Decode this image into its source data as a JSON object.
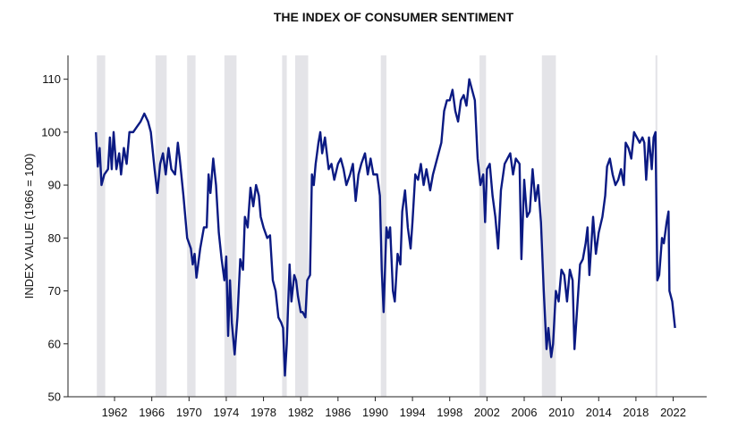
{
  "chart_data": {
    "type": "line",
    "title": "THE INDEX OF CONSUMER SENTIMENT",
    "y_label": "INDEX VALUE (1966 = 100)",
    "color": "#0b1a83",
    "recession_color": "#e4e4e8",
    "xlim": [
      1957,
      2025.6
    ],
    "ylim": [
      50,
      114.5
    ],
    "xticks": [
      1962,
      1966,
      1970,
      1974,
      1978,
      1982,
      1986,
      1990,
      1994,
      1998,
      2002,
      2006,
      2010,
      2014,
      2018,
      2022
    ],
    "yticks": [
      50,
      60,
      70,
      80,
      90,
      100,
      110
    ],
    "recessions": [
      [
        1960.1,
        1961.0
      ],
      [
        1966.4,
        1967.6
      ],
      [
        1969.8,
        1970.7
      ],
      [
        1973.8,
        1975.1
      ],
      [
        1980.0,
        1980.5
      ],
      [
        1981.4,
        1982.8
      ],
      [
        1990.6,
        1991.2
      ],
      [
        2001.2,
        2001.9
      ],
      [
        2007.9,
        2009.4
      ],
      [
        2020.1,
        2020.3
      ]
    ],
    "x": [
      1960.0,
      1960.2,
      1960.4,
      1960.6,
      1960.9,
      1961.3,
      1961.5,
      1961.7,
      1961.9,
      1962.2,
      1962.5,
      1962.7,
      1963.0,
      1963.3,
      1963.6,
      1964.0,
      1964.4,
      1964.8,
      1965.2,
      1965.6,
      1965.9,
      1966.3,
      1966.6,
      1966.9,
      1967.2,
      1967.5,
      1967.8,
      1968.1,
      1968.5,
      1968.8,
      1969.0,
      1969.4,
      1969.8,
      1970.2,
      1970.4,
      1970.6,
      1970.8,
      1971.2,
      1971.6,
      1971.9,
      1972.1,
      1972.3,
      1972.6,
      1972.9,
      1973.2,
      1973.5,
      1973.8,
      1974.0,
      1974.2,
      1974.4,
      1974.6,
      1974.9,
      1975.2,
      1975.5,
      1975.8,
      1976.0,
      1976.3,
      1976.6,
      1976.9,
      1977.2,
      1977.5,
      1977.7,
      1978.0,
      1978.4,
      1978.7,
      1979.0,
      1979.3,
      1979.6,
      1979.9,
      1980.1,
      1980.3,
      1980.5,
      1980.8,
      1981.0,
      1981.3,
      1981.5,
      1981.7,
      1982.0,
      1982.2,
      1982.5,
      1982.7,
      1983.0,
      1983.2,
      1983.4,
      1983.6,
      1983.9,
      1984.1,
      1984.3,
      1984.6,
      1985.0,
      1985.3,
      1985.6,
      1986.0,
      1986.3,
      1986.6,
      1986.9,
      1987.3,
      1987.6,
      1987.9,
      1988.2,
      1988.5,
      1988.9,
      1989.2,
      1989.5,
      1989.8,
      1990.2,
      1990.5,
      1990.7,
      1990.9,
      1991.2,
      1991.4,
      1991.6,
      1991.9,
      1992.1,
      1992.4,
      1992.7,
      1992.9,
      1993.2,
      1993.5,
      1993.8,
      1994.0,
      1994.3,
      1994.6,
      1994.9,
      1995.2,
      1995.5,
      1995.9,
      1996.2,
      1996.5,
      1996.8,
      1997.1,
      1997.4,
      1997.7,
      1998.0,
      1998.3,
      1998.6,
      1998.9,
      1999.2,
      1999.5,
      1999.8,
      2000.1,
      2000.4,
      2000.7,
      2001.0,
      2001.3,
      2001.6,
      2001.8,
      2002.0,
      2002.3,
      2002.6,
      2002.9,
      2003.2,
      2003.5,
      2003.9,
      2004.2,
      2004.5,
      2004.8,
      2005.1,
      2005.5,
      2005.7,
      2006.0,
      2006.3,
      2006.6,
      2006.9,
      2007.2,
      2007.5,
      2007.8,
      2008.1,
      2008.4,
      2008.6,
      2008.9,
      2009.1,
      2009.4,
      2009.7,
      2010.0,
      2010.3,
      2010.6,
      2010.9,
      2011.2,
      2011.4,
      2011.7,
      2012.0,
      2012.3,
      2012.6,
      2012.8,
      2013.0,
      2013.4,
      2013.7,
      2014.0,
      2014.4,
      2014.7,
      2014.9,
      2015.2,
      2015.5,
      2015.8,
      2016.1,
      2016.4,
      2016.7,
      2016.9,
      2017.2,
      2017.5,
      2017.8,
      2018.1,
      2018.4,
      2018.7,
      2018.9,
      2019.1,
      2019.4,
      2019.7,
      2019.9,
      2020.1,
      2020.3,
      2020.5,
      2020.8,
      2021.0,
      2021.3,
      2021.5,
      2021.6,
      2021.9,
      2022.2
    ],
    "values": [
      100,
      93.5,
      97,
      90,
      92,
      93,
      99,
      93,
      100,
      93,
      96,
      92,
      97,
      94,
      100,
      100,
      101,
      102,
      103.5,
      102,
      100,
      93,
      88.5,
      94,
      96,
      92,
      97,
      93,
      92,
      98,
      95,
      88,
      80,
      78,
      75,
      77,
      72.5,
      78,
      82,
      82,
      92,
      88.5,
      95,
      90,
      81,
      76,
      72,
      76.5,
      61.5,
      72,
      64,
      58,
      65,
      76,
      74,
      84,
      82,
      89.5,
      86,
      90,
      88,
      84,
      82,
      80,
      80.5,
      72,
      70,
      65,
      64,
      63,
      54,
      60,
      75,
      68,
      73,
      72,
      69,
      66,
      66,
      65,
      72,
      73,
      92,
      90,
      94,
      98,
      100,
      96,
      99,
      93,
      94,
      91,
      94,
      95,
      93,
      90,
      92,
      94,
      87,
      92,
      94,
      96,
      92,
      95,
      92,
      92,
      88,
      74,
      66,
      82,
      80,
      82,
      70,
      68,
      77,
      75,
      85,
      89,
      82,
      78,
      83,
      92,
      91,
      94,
      90,
      93,
      89,
      92,
      94,
      96,
      98,
      104,
      106,
      106,
      108,
      104,
      102,
      106,
      107,
      105,
      110,
      108,
      106,
      95,
      90,
      92,
      83,
      93,
      94,
      88,
      84,
      78,
      89,
      94,
      95,
      96,
      92,
      95,
      94,
      76,
      91,
      84,
      85,
      93,
      87,
      90,
      83,
      70,
      59,
      63,
      57.5,
      60,
      70,
      68,
      74,
      73,
      68,
      74,
      72,
      59,
      67,
      75,
      76,
      79,
      82,
      73,
      84,
      77,
      81,
      84,
      88,
      93.5,
      95,
      92,
      90,
      91,
      93,
      90,
      98,
      97,
      95,
      100,
      99,
      98,
      99,
      98,
      91,
      99,
      93,
      99,
      100,
      72,
      73,
      80,
      79,
      83,
      85,
      70,
      68,
      63
    ]
  }
}
